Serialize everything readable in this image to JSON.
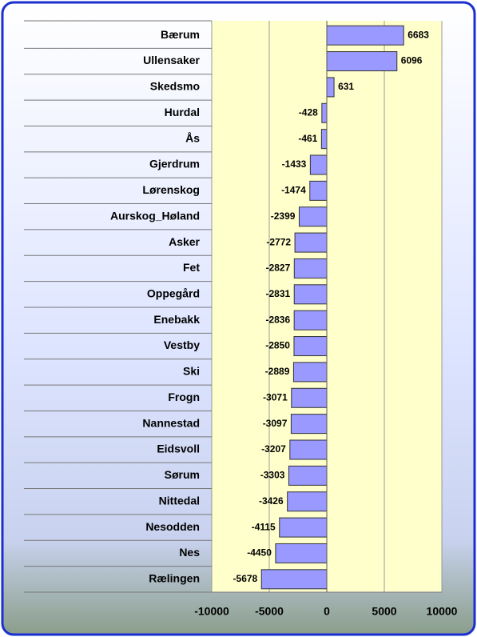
{
  "chart_data": {
    "type": "bar",
    "orientation": "horizontal",
    "categories": [
      "Bærum",
      "Ullensaker",
      "Skedsmo",
      "Hurdal",
      "Ås",
      "Gjerdrum",
      "Lørenskog",
      "Aurskog_Høland",
      "Asker",
      "Fet",
      "Oppegård",
      "Enebakk",
      "Vestby",
      "Ski",
      "Frogn",
      "Nannestad",
      "Eidsvoll",
      "Sørum",
      "Nittedal",
      "Nesodden",
      "Nes",
      "Rælingen"
    ],
    "values": [
      6683,
      6096,
      631,
      -428,
      -461,
      -1433,
      -1474,
      -2399,
      -2772,
      -2827,
      -2831,
      -2836,
      -2850,
      -2889,
      -3071,
      -3097,
      -3207,
      -3303,
      -3426,
      -4115,
      -4450,
      -5678
    ],
    "color": "#9999ff",
    "xlim": [
      -10000,
      10000
    ],
    "xticks": [
      -10000,
      -5000,
      0,
      5000,
      10000
    ],
    "grid": true
  }
}
